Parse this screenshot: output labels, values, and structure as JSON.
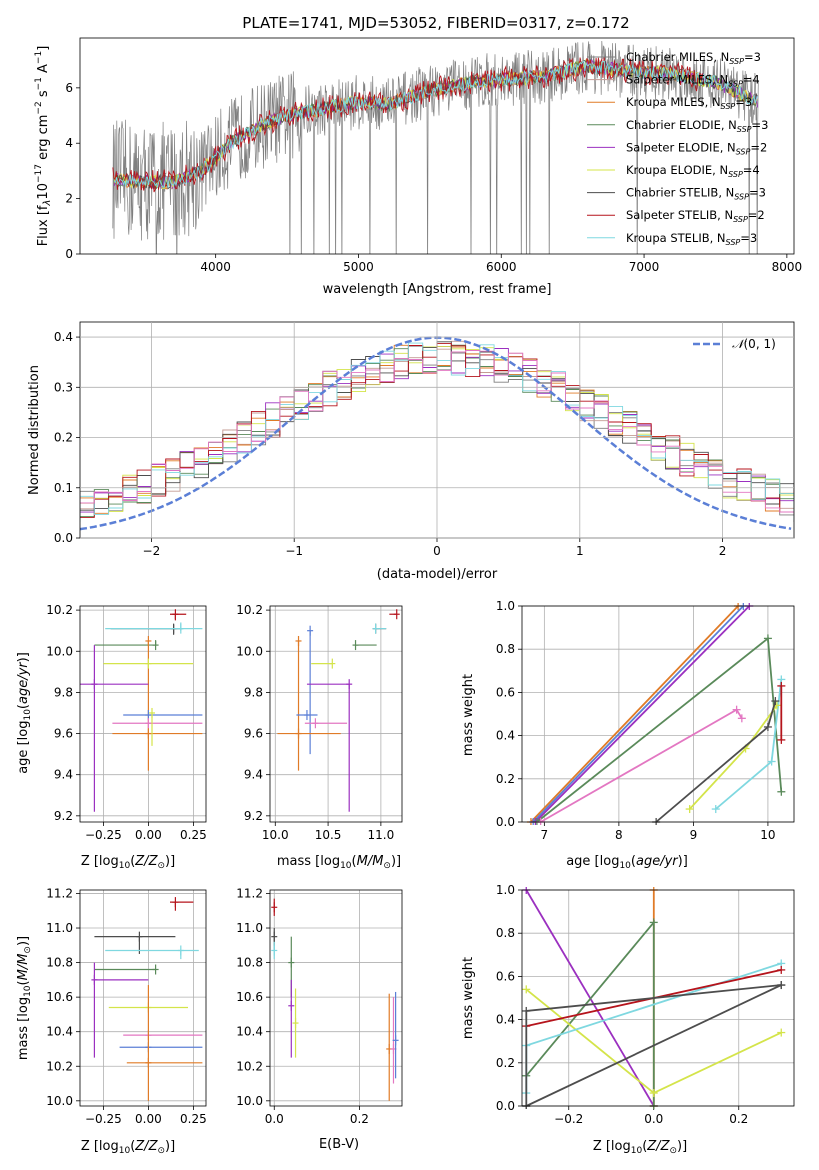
{
  "title": "PLATE=1741, MJD=53052, FIBERID=0317, z=0.172",
  "colors": {
    "miles_chabrier": "#7f7f7f",
    "miles_salpeter": "#c49c94",
    "miles_kroupa": "#e07b27",
    "elodie_chabrier": "#5a8a5a",
    "elodie_salpeter": "#9b30c0",
    "elodie_kroupa": "#d4e44a",
    "stelib_chabrier": "#4d4d4d",
    "stelib_salpeter": "#b5141c",
    "stelib_kroupa": "#7fd8e0",
    "pink": "#e377c2",
    "blue": "#5b7fd6",
    "normal": "#5b7fd6"
  },
  "chart_data": [
    {
      "id": "spectrum",
      "type": "line",
      "xlabel": "wavelength [Angstrom, rest frame]",
      "ylabel": "Flux [f_λ 10^-17 erg cm^-2 s^-1 A^-1]",
      "xlim": [
        3050,
        8050
      ],
      "ylim": [
        0,
        7.8
      ],
      "xticks": [
        4000,
        5000,
        6000,
        7000,
        8000
      ],
      "yticks": [
        0,
        2,
        4,
        6
      ],
      "grid": false,
      "legend_position": "top-right",
      "series": [
        {
          "name": "Chabrier MILES, N_SSP=3",
          "label_main": "Chabrier MILES, N",
          "sub": "SSP",
          "label_tail": "=3",
          "color": "#7f7f7f"
        },
        {
          "name": "Salpeter MILES, N_SSP=4",
          "label_main": "Salpeter MILES, N",
          "sub": "SSP",
          "label_tail": "=4",
          "color": "#c49c94"
        },
        {
          "name": "Kroupa MILES, N_SSP=3",
          "label_main": "Kroupa MILES, N",
          "sub": "SSP",
          "label_tail": "=3",
          "color": "#e07b27"
        },
        {
          "name": "Chabrier ELODIE, N_SSP=3",
          "label_main": "Chabrier ELODIE, N",
          "sub": "SSP",
          "label_tail": "=3",
          "color": "#5a8a5a"
        },
        {
          "name": "Salpeter ELODIE, N_SSP=2",
          "label_main": "Salpeter ELODIE, N",
          "sub": "SSP",
          "label_tail": "=2",
          "color": "#9b30c0"
        },
        {
          "name": "Kroupa ELODIE, N_SSP=4",
          "label_main": "Kroupa ELODIE, N",
          "sub": "SSP",
          "label_tail": "=4",
          "color": "#d4e44a"
        },
        {
          "name": "Chabrier STELIB, N_SSP=3",
          "label_main": "Chabrier STELIB, N",
          "sub": "SSP",
          "label_tail": "=3",
          "color": "#4d4d4d"
        },
        {
          "name": "Salpeter STELIB, N_SSP=2",
          "label_main": "Salpeter STELIB, N",
          "sub": "SSP",
          "label_tail": "=2",
          "color": "#b5141c"
        },
        {
          "name": "Kroupa STELIB, N_SSP=3",
          "label_main": "Kroupa STELIB, N",
          "sub": "SSP",
          "label_tail": "=3",
          "color": "#7fd8e0"
        }
      ],
      "data_wavelength_range": [
        3280,
        7800
      ],
      "continuum_points": [
        [
          3280,
          2.7
        ],
        [
          3500,
          2.6
        ],
        [
          3700,
          2.6
        ],
        [
          3900,
          3.0
        ],
        [
          4100,
          4.0
        ],
        [
          4300,
          4.6
        ],
        [
          4500,
          5.0
        ],
        [
          4800,
          5.3
        ],
        [
          5000,
          5.5
        ],
        [
          5200,
          5.4
        ],
        [
          5500,
          5.9
        ],
        [
          5800,
          6.2
        ],
        [
          6000,
          6.3
        ],
        [
          6300,
          6.4
        ],
        [
          6600,
          6.8
        ],
        [
          6900,
          6.6
        ],
        [
          7200,
          6.5
        ],
        [
          7500,
          6.2
        ],
        [
          7800,
          5.5
        ]
      ]
    },
    {
      "id": "residuals",
      "type": "line",
      "xlabel": "(data-model)/error",
      "ylabel": "Normed distribution",
      "xlim": [
        -2.5,
        2.5
      ],
      "ylim": [
        0,
        0.43
      ],
      "xticks": [
        -2,
        -1,
        0,
        1,
        2
      ],
      "yticks": [
        0.0,
        0.1,
        0.2,
        0.3,
        0.4
      ],
      "grid": true,
      "legend_position": "top-right",
      "normal_label": "N(0,1)",
      "normal_mean": 0,
      "normal_sigma": 1
    },
    {
      "id": "age_vs_Z",
      "type": "scatter",
      "xlabel": "Z [log10(Z/Z☉)]",
      "ylabel": "age  [log10(age/yr)]",
      "xlim": [
        -0.38,
        0.32
      ],
      "ylim": [
        9.17,
        10.22
      ],
      "xticks": [
        -0.25,
        0.0,
        0.25
      ],
      "yticks": [
        9.2,
        9.4,
        9.6,
        9.8,
        10.0,
        10.2
      ],
      "grid": true,
      "points": [
        {
          "color": "#b5141c",
          "x": 0.15,
          "x_err": [
            0.03,
            0.06
          ],
          "y": 10.18,
          "y_err": [
            0.03,
            0.0
          ]
        },
        {
          "color": "#4d4d4d",
          "x": 0.14,
          "x_err": [
            0.35,
            0.05
          ],
          "y": 10.11,
          "y_err": [
            0.03,
            0.02
          ]
        },
        {
          "color": "#7fd8e0",
          "x": 0.18,
          "x_err": [
            0.42,
            0.12
          ],
          "y": 10.11,
          "y_err": [
            0.01,
            0.03
          ]
        },
        {
          "color": "#5a8a5a",
          "x": 0.04,
          "x_err": [
            0.34,
            0.0
          ],
          "y": 10.03,
          "y_err": [
            0.0,
            0.02
          ]
        },
        {
          "color": "#e07b27",
          "x": 0.0,
          "x_err": [
            0.0,
            0.0
          ],
          "y": 10.05,
          "y_err": [
            0.63,
            0.0
          ]
        },
        {
          "color": "#d4e44a",
          "x": 0.0,
          "x_err": [
            0.25,
            0.25
          ],
          "y": 9.94,
          "y_err": [
            0.0,
            0.0
          ]
        },
        {
          "color": "#9b30c0",
          "x": -0.3,
          "x_err": [
            0.08,
            0.3
          ],
          "y": 9.84,
          "y_err": [
            0.62,
            0.19
          ]
        },
        {
          "color": "#5b7fd6",
          "x": 0.0,
          "x_err": [
            0.14,
            0.3
          ],
          "y": 9.69,
          "y_err": [
            0.0,
            0.0
          ]
        },
        {
          "color": "#e377c2",
          "x": 0.0,
          "x_err": [
            0.2,
            0.3
          ],
          "y": 9.65,
          "y_err": [
            0.0,
            0.0
          ]
        },
        {
          "color": "#e07b27",
          "x": 0.0,
          "x_err": [
            0.2,
            0.3
          ],
          "y": 9.6,
          "y_err": [
            0.0,
            0.0
          ]
        },
        {
          "color": "#d4e44a",
          "x": 0.02,
          "x_err": [
            0.0,
            0.0
          ],
          "y": 9.7,
          "y_err": [
            0.16,
            0.0
          ]
        }
      ]
    },
    {
      "id": "age_vs_mass",
      "type": "scatter",
      "xlabel": "mass [log10(M/M☉)]",
      "xlim": [
        9.95,
        11.2
      ],
      "ylim": [
        9.17,
        10.22
      ],
      "xticks": [
        10.0,
        10.5,
        11.0
      ],
      "yticks": [
        9.2,
        9.4,
        9.6,
        9.8,
        10.0,
        10.2
      ],
      "grid": true,
      "points": [
        {
          "color": "#b5141c",
          "x": 11.15,
          "x_err": [
            0.07,
            0.0
          ],
          "y": 10.18,
          "y_err": [
            0.0,
            0.0
          ]
        },
        {
          "color": "#4d4d4d",
          "x": 10.95,
          "x_err": [
            0.0,
            0.1
          ],
          "y": 10.11,
          "y_err": [
            0.0,
            0.0
          ]
        },
        {
          "color": "#7fd8e0",
          "x": 10.95,
          "x_err": [
            0.0,
            0.1
          ],
          "y": 10.11,
          "y_err": [
            0.0,
            0.0
          ]
        },
        {
          "color": "#5a8a5a",
          "x": 10.76,
          "x_err": [
            0.0,
            0.2
          ],
          "y": 10.03,
          "y_err": [
            0.0,
            0.0
          ]
        },
        {
          "color": "#e07b27",
          "x": 10.22,
          "x_err": [
            0.0,
            0.0
          ],
          "y": 10.05,
          "y_err": [
            0.63,
            0.0
          ]
        },
        {
          "color": "#5b7fd6",
          "x": 10.33,
          "x_err": [
            0.0,
            0.0
          ],
          "y": 10.1,
          "y_err": [
            0.6,
            0.0
          ]
        },
        {
          "color": "#d4e44a",
          "x": 10.54,
          "x_err": [
            0.2,
            0.0
          ],
          "y": 9.94,
          "y_err": [
            0.0,
            0.0
          ]
        },
        {
          "color": "#9b30c0",
          "x": 10.7,
          "x_err": [
            0.4,
            0.0
          ],
          "y": 9.84,
          "y_err": [
            0.62,
            0.0
          ]
        },
        {
          "color": "#5b7fd6",
          "x": 10.3,
          "x_err": [
            0.1,
            0.1
          ],
          "y": 9.69,
          "y_err": [
            0.0,
            0.0
          ]
        },
        {
          "color": "#e377c2",
          "x": 10.38,
          "x_err": [
            0.1,
            0.3
          ],
          "y": 9.65,
          "y_err": [
            0.0,
            0.0
          ]
        },
        {
          "color": "#e07b27",
          "x": 10.22,
          "x_err": [
            0.2,
            0.4
          ],
          "y": 9.6,
          "y_err": [
            0.0,
            0.0
          ]
        }
      ]
    },
    {
      "id": "weight_vs_age",
      "type": "line",
      "xlabel": "age  [log10(age/yr)]",
      "ylabel": "mass weight",
      "xlim": [
        6.7,
        10.35
      ],
      "ylim": [
        0,
        1
      ],
      "xticks": [
        7,
        8,
        9,
        10
      ],
      "yticks": [
        0.0,
        0.2,
        0.4,
        0.6,
        0.8,
        1.0
      ],
      "grid": true,
      "series": [
        {
          "color": "#e07b27",
          "points": [
            [
              6.82,
              0.0
            ],
            [
              9.6,
              1.0
            ]
          ]
        },
        {
          "color": "#5b7fd6",
          "points": [
            [
              6.85,
              0.0
            ],
            [
              9.67,
              1.0
            ]
          ]
        },
        {
          "color": "#9b30c0",
          "points": [
            [
              6.88,
              0.0
            ],
            [
              9.75,
              1.0
            ]
          ]
        },
        {
          "color": "#5a8a5a",
          "points": [
            [
              6.9,
              0.0
            ],
            [
              10.0,
              0.85
            ],
            [
              10.18,
              0.14
            ]
          ]
        },
        {
          "color": "#e377c2",
          "points": [
            [
              6.95,
              0.0
            ],
            [
              9.58,
              0.52
            ],
            [
              9.65,
              0.48
            ]
          ]
        },
        {
          "color": "#7fd8e0",
          "points": [
            [
              9.3,
              0.06
            ],
            [
              10.05,
              0.28
            ],
            [
              10.18,
              0.66
            ]
          ]
        },
        {
          "color": "#d4e44a",
          "points": [
            [
              8.95,
              0.06
            ],
            [
              9.7,
              0.34
            ],
            [
              10.12,
              0.54
            ]
          ]
        },
        {
          "color": "#4d4d4d",
          "points": [
            [
              8.5,
              0.0
            ],
            [
              10.0,
              0.44
            ],
            [
              10.1,
              0.56
            ]
          ]
        },
        {
          "color": "#b5141c",
          "points": [
            [
              10.18,
              0.38
            ],
            [
              10.18,
              0.63
            ]
          ]
        }
      ]
    },
    {
      "id": "mass_vs_Z",
      "type": "scatter",
      "xlabel": "Z [log10(Z/Z☉)]",
      "ylabel": "mass [log10(M/M☉)]",
      "xlim": [
        -0.38,
        0.32
      ],
      "ylim": [
        9.97,
        11.22
      ],
      "xticks": [
        -0.25,
        0.0,
        0.25
      ],
      "yticks": [
        10.0,
        10.2,
        10.4,
        10.6,
        10.8,
        11.0,
        11.2
      ],
      "grid": true,
      "points": [
        {
          "color": "#b5141c",
          "x": 0.15,
          "x_err": [
            0.03,
            0.1
          ],
          "y": 11.15,
          "y_err": [
            0.05,
            0.0
          ]
        },
        {
          "color": "#4d4d4d",
          "x": -0.05,
          "x_err": [
            0.25,
            0.2
          ],
          "y": 10.95,
          "y_err": [
            0.1,
            0.0
          ]
        },
        {
          "color": "#7fd8e0",
          "x": 0.18,
          "x_err": [
            0.42,
            0.1
          ],
          "y": 10.87,
          "y_err": [
            0.05,
            0.0
          ]
        },
        {
          "color": "#5a8a5a",
          "x": 0.04,
          "x_err": [
            0.34,
            0.0
          ],
          "y": 10.76,
          "y_err": [
            0.0,
            0.0
          ]
        },
        {
          "color": "#9b30c0",
          "x": -0.3,
          "x_err": [
            0.0,
            0.3
          ],
          "y": 10.7,
          "y_err": [
            0.45,
            0.1
          ]
        },
        {
          "color": "#d4e44a",
          "x": 0.0,
          "x_err": [
            0.22,
            0.22
          ],
          "y": 10.54,
          "y_err": [
            0.0,
            0.0
          ]
        },
        {
          "color": "#e377c2",
          "x": 0.0,
          "x_err": [
            0.14,
            0.3
          ],
          "y": 10.38,
          "y_err": [
            0.0,
            0.0
          ]
        },
        {
          "color": "#5b7fd6",
          "x": 0.0,
          "x_err": [
            0.16,
            0.3
          ],
          "y": 10.31,
          "y_err": [
            0.0,
            0.0
          ]
        },
        {
          "color": "#e07b27",
          "x": 0.0,
          "x_err": [
            0.12,
            0.3
          ],
          "y": 10.22,
          "y_err": [
            0.22,
            0.45
          ]
        }
      ]
    },
    {
      "id": "mass_vs_ebv",
      "type": "scatter",
      "xlabel": "E(B-V)",
      "xlim": [
        -0.01,
        0.3
      ],
      "ylim": [
        9.97,
        11.22
      ],
      "xticks": [
        0.0,
        0.2
      ],
      "yticks": [
        10.0,
        10.2,
        10.4,
        10.6,
        10.8,
        11.0,
        11.2
      ],
      "grid": true,
      "points": [
        {
          "color": "#b5141c",
          "x": 0.0,
          "y": 11.12,
          "y_err": [
            0.05,
            0.05
          ]
        },
        {
          "color": "#4d4d4d",
          "x": 0.0,
          "y": 10.95,
          "y_err": [
            0.08,
            0.05
          ]
        },
        {
          "color": "#7fd8e0",
          "x": 0.0,
          "y": 10.87,
          "y_err": [
            0.05,
            0.05
          ]
        },
        {
          "color": "#5a8a5a",
          "x": 0.04,
          "y": 10.8,
          "y_err": [
            0.2,
            0.15
          ]
        },
        {
          "color": "#9b30c0",
          "x": 0.04,
          "y": 10.55,
          "y_err": [
            0.3,
            0.15
          ]
        },
        {
          "color": "#d4e44a",
          "x": 0.05,
          "y": 10.45,
          "y_err": [
            0.2,
            0.2
          ]
        },
        {
          "color": "#e07b27",
          "x": 0.27,
          "y": 10.3,
          "y_err": [
            0.3,
            0.32
          ]
        },
        {
          "color": "#e377c2",
          "x": 0.28,
          "y": 10.3,
          "y_err": [
            0.2,
            0.3
          ]
        },
        {
          "color": "#5b7fd6",
          "x": 0.285,
          "y": 10.35,
          "y_err": [
            0.22,
            0.28
          ]
        }
      ]
    },
    {
      "id": "weight_vs_Z",
      "type": "line",
      "xlabel": "Z [log10(Z/Z☉)]",
      "ylabel": "mass weight",
      "xlim": [
        -0.31,
        0.33
      ],
      "ylim": [
        0,
        1
      ],
      "xticks": [
        -0.2,
        0.0,
        0.2
      ],
      "yticks": [
        0.0,
        0.2,
        0.4,
        0.6,
        0.8,
        1.0
      ],
      "grid": true,
      "series": [
        {
          "color": "#9b30c0",
          "points": [
            [
              -0.3,
              1.0
            ],
            [
              0.0,
              0.0
            ]
          ]
        },
        {
          "color": "#e07b27",
          "points": [
            [
              0.0,
              1.0
            ],
            [
              0.0,
              0.0
            ]
          ]
        },
        {
          "color": "#5a8a5a",
          "points": [
            [
              -0.3,
              0.14
            ],
            [
              0.0,
              0.85
            ],
            [
              0.0,
              0.0
            ]
          ]
        },
        {
          "color": "#d4e44a",
          "points": [
            [
              -0.3,
              0.54
            ],
            [
              0.0,
              0.06
            ],
            [
              0.3,
              0.34
            ]
          ]
        },
        {
          "color": "#7fd8e0",
          "points": [
            [
              -0.3,
              0.06
            ],
            [
              -0.3,
              0.28
            ],
            [
              0.3,
              0.66
            ]
          ]
        },
        {
          "color": "#b5141c",
          "points": [
            [
              -0.3,
              0.37
            ],
            [
              0.3,
              0.63
            ]
          ]
        },
        {
          "color": "#4d4d4d",
          "points": [
            [
              -0.3,
              0.0
            ],
            [
              -0.3,
              0.44
            ],
            [
              0.3,
              0.56
            ]
          ]
        },
        {
          "color": "#4d4d4d",
          "points": [
            [
              -0.3,
              0.0
            ],
            [
              0.3,
              0.56
            ]
          ]
        }
      ]
    }
  ]
}
